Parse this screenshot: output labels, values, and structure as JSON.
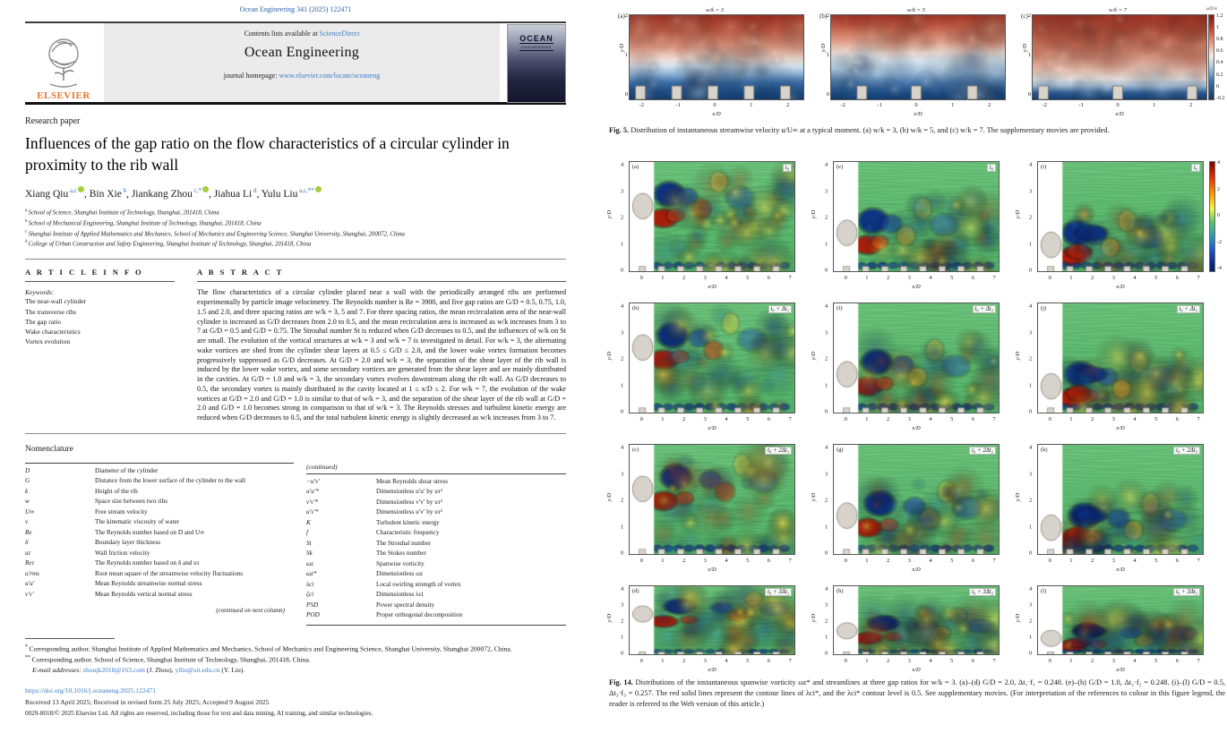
{
  "left_page": {
    "journal_ref": "Ocean Engineering 341 (2025) 122471",
    "masthead": {
      "elsevier_label": "ELSEVIER",
      "contents_prefix": "Contents lists available at ",
      "sciencedirect": "ScienceDirect",
      "journal_title": "Ocean Engineering",
      "homepage_prefix": "journal homepage: ",
      "homepage_url": "www.elsevier.com/locate/oceaneng",
      "cover_title": "OCEAN",
      "cover_subtitle": "ENGINEERING"
    },
    "article": {
      "type_label": "Research paper",
      "title": "Influences of the gap ratio on the flow characteristics of a circular cylinder in proximity to the rib wall",
      "authors": [
        {
          "name": "Xiang Qiu",
          "sup": "a,c",
          "orcid": true
        },
        {
          "name": "Bin Xie",
          "sup": "b",
          "orcid": false
        },
        {
          "name": "Jiankang Zhou",
          "sup": "c,*",
          "orcid": true
        },
        {
          "name": "Jiahua Li",
          "sup": "d",
          "orcid": false
        },
        {
          "name": "Yulu Liu",
          "sup": "a,c,**",
          "orcid": true
        }
      ],
      "affiliations": [
        {
          "sup": "a",
          "text": "School of Science, Shanghai Institute of Technology, Shanghai, 201418, China"
        },
        {
          "sup": "b",
          "text": "School of Mechanical Engineering, Shanghai Institute of Technology, Shanghai, 201418, China"
        },
        {
          "sup": "c",
          "text": "Shanghai Institute of Applied Mathematics and Mechanics, School of Mechanics and Engineering Science, Shanghai University, Shanghai, 200072, China"
        },
        {
          "sup": "d",
          "text": "College of Urban Construction and Safety Engineering, Shanghai Institute of Technology, Shanghai, 201418, China"
        }
      ]
    },
    "article_info": {
      "heading": "A R T I C L E  I N F O",
      "keywords_label": "Keywords:",
      "keywords": [
        "The near-wall cylinder",
        "The transverse ribs",
        "The gap ratio",
        "Wake characteristics",
        "Vortex evolution"
      ]
    },
    "abstract": {
      "heading": "A B S T R A C T",
      "text": "The flow characteristics of a circular cylinder placed near a wall with the periodically arranged ribs are performed experimentally by particle image velocimetry. The Reynolds number is Re = 3900, and five gap ratios are G/D = 0.5, 0.75, 1.0, 1.5 and 2.0, and three spacing ratios are w/k = 3, 5 and 7. For three spacing ratios, the mean recirculation area of the near-wall cylinder is increased as G/D decreases from 2.0 to 0.5, and the mean recirculation area is increased as w/k increases from 3 to 7 at G/D = 0.5 and G/D = 0.75. The Strouhal number St is reduced when G/D decreases to 0.5, and the influences of w/k on St are small. The evolution of the vortical structures at w/k = 3 and w/k = 7 is investigated in detail. For w/k = 3, the alternating wake vortices are shed from the cylinder shear layers at 0.5 ≤ G/D ≤ 2.0, and the lower wake vortex formation becomes progressively suppressed as G/D decreases. At G/D = 2.0 and w/k = 3, the separation of the shear layer of the rib wall is induced by the lower wake vortex, and some secondary vortices are generated from the shear layer and are mainly distributed in the cavities. At G/D = 1.0 and w/k = 3, the secondary vortex evolves downstream along the rib wall. As G/D decreases to 0.5, the secondary vortex is mainly distributed in the cavity located at 1 ≤ x/D ≤ 2. For w/k = 7, the evolution of the wake vortices at G/D = 2.0 and G/D = 1.0 is similar to that of w/k = 3, and the separation of the shear layer of the rib wall at G/D = 2.0 and G/D = 1.0 becomes strong in comparison to that of w/k = 3. The Reynolds stresses and turbulent kinetic energy are reduced when G/D decreases to 0.5, and the total turbulent kinetic energy is slightly decreased as w/k increases from 3 to 7."
    },
    "nomenclature": {
      "heading": "Nomenclature",
      "left": [
        {
          "sym": "D",
          "desc": "Diameter of the cylinder"
        },
        {
          "sym": "G",
          "desc": "Distance from the lower surface of the cylinder to the wall"
        },
        {
          "sym": "k",
          "desc": "Height of the rib"
        },
        {
          "sym": "w",
          "desc": "Space size between two ribs"
        },
        {
          "sym": "U∞",
          "desc": "Free stream velocity"
        },
        {
          "sym": "ν",
          "desc": "The kinematic viscosity of water"
        },
        {
          "sym": "Re",
          "desc": "The Reynolds number based on D and U∞"
        },
        {
          "sym": "δ",
          "desc": "Boundary layer thickness"
        },
        {
          "sym": "uτ",
          "desc": "Wall friction velocity"
        },
        {
          "sym": "Reτ",
          "desc": "The Reynolds number based on δ and uτ"
        },
        {
          "sym": "u′rms",
          "desc": "Root mean square of the streamwise velocity fluctuations"
        },
        {
          "sym": "u′u′",
          "desc": "Mean Reynolds streamwise normal stress"
        },
        {
          "sym": "v′v′",
          "desc": "Mean Reynolds vertical normal stress"
        }
      ],
      "continued_note": "(continued on next column)",
      "continued_heading": "(continued)",
      "right": [
        {
          "sym": "−u′v′",
          "desc": "Mean Reynolds shear stress"
        },
        {
          "sym": "u′u′*",
          "desc": "Dimensionless u′u′ by uτ²"
        },
        {
          "sym": "v′v′*",
          "desc": "Dimensionless v′v′ by uτ²"
        },
        {
          "sym": "u′v′*",
          "desc": "Dimensionless u′v′ by uτ²"
        },
        {
          "sym": "K",
          "desc": "Turbulent kinetic energy"
        },
        {
          "sym": "f",
          "desc": "Characteristic frequency"
        },
        {
          "sym": "St",
          "desc": "The Strouhal number"
        },
        {
          "sym": "Sk",
          "desc": "The Stokes number"
        },
        {
          "sym": "ωz",
          "desc": "Spanwise vorticity"
        },
        {
          "sym": "ωz*",
          "desc": "Dimensionless ωz"
        },
        {
          "sym": "λci",
          "desc": "Local swirling strength of vortex"
        },
        {
          "sym": "ζci",
          "desc": "Dimensionless λci"
        },
        {
          "sym": "PSD",
          "desc": "Power spectral density"
        },
        {
          "sym": "POD",
          "desc": "Proper orthogonal decomposition"
        }
      ]
    },
    "footnotes": [
      {
        "marker": "*",
        "text": "Corresponding author. Shanghai Institute of Applied Mathematics and Mechanics, School of Mechanics and Engineering Science, Shanghai University, Shanghai 200072, China."
      },
      {
        "marker": "**",
        "text": "Corresponding author. School of Science, Shanghai Institute of Technology, Shanghai, 201418, China."
      }
    ],
    "email": {
      "label": "E-mail addresses:",
      "link1": "zhoujk2018@163.com",
      "mid1": " (J. Zhou), ",
      "link2": "ylliu@sit.edu.cn",
      "mid2": " (Y. Liu)."
    },
    "doi": "https://doi.org/10.1016/j.oceaneng.2025.122471",
    "received": "Received 13 April 2025; Received in revised form 25 July 2025; Accepted 9 August 2025",
    "copyright": "0029-8018/© 2025 Elsevier Ltd. All rights are reserved, including those for text and data mining, AI training, and similar technologies."
  },
  "fig5": {
    "panels": [
      {
        "letter": "(a)",
        "title": "w/k = 3",
        "ribs": [
          -2.05,
          -1.05,
          -0.05,
          0.95,
          1.95
        ],
        "variant": 0
      },
      {
        "letter": "(b)",
        "title": "w/k = 5",
        "ribs": [
          -1.5,
          0,
          1.55
        ],
        "variant": 1
      },
      {
        "letter": "(c)",
        "title": "w/k = 7",
        "ribs": [
          -2.05,
          0,
          2.05
        ],
        "variant": 2
      }
    ],
    "x_ticks": [
      "-2",
      "-1",
      "0",
      "1",
      "2"
    ],
    "y_ticks": [
      "2",
      "1",
      "0"
    ],
    "xlabel": "x/D",
    "ylabel": "y/D",
    "colorbar": {
      "label": "u/U∞",
      "ticks": [
        "1.2",
        "1",
        "0.8",
        "0.6",
        "0.4",
        "0.2",
        "0",
        "-0.2"
      ]
    },
    "caption_bold": "Fig. 5.",
    "caption_text": " Distribution of instantaneous streamwise velocity u/U∞ at a typical moment. (a) w/k = 3, (b) w/k = 5, and (c) w/k = 7. The supplementary movies are provided."
  },
  "fig14": {
    "panel_letters": [
      [
        "(a)",
        "(e)",
        "(i)"
      ],
      [
        "(b)",
        "(f)",
        "(j)"
      ],
      [
        "(c)",
        "(g)",
        "(k)"
      ],
      [
        "(d)",
        "(h)",
        "(l)"
      ]
    ],
    "time_labels": [
      [
        "t₀",
        "t₀",
        "t₀"
      ],
      [
        "t₀ + Δt₁",
        "t₀ + Δt₂",
        "t₀ + Δt₃"
      ],
      [
        "t₀ + 2Δt₁",
        "t₀ + 2Δt₂",
        "t₀ + 2Δt₃"
      ],
      [
        "t₀ + 3Δt₁",
        "t₀ + 3Δt₂",
        "t₀ + 3Δt₃"
      ]
    ],
    "cylinder_y": [
      2.5,
      1.5,
      1.05
    ],
    "x_ticks": [
      "0",
      "1",
      "2",
      "3",
      "4",
      "5",
      "6",
      "7"
    ],
    "y_ticks": [
      "4",
      "3",
      "2",
      "1",
      "0"
    ],
    "xlabel": "x/D",
    "ylabel": "y/D",
    "colorbar_ticks": [
      "4",
      "2",
      "0",
      "-2",
      "-4"
    ],
    "caption_bold": "Fig. 14.",
    "caption_text": " Distributions of the instantaneous spanwise vorticity ωz* and streamlines at three gap ratios for w/k = 3. (a)–(d) G/D = 2.0, Δt₁·f₁ = 0.248. (e)–(h) G/D = 1.0, Δt₂·f₂ = 0.248. (i)–(l) G/D = 0.5, Δt₃·f₃ = 0.257. The red solid lines represent the contour lines of λci*, and the λci* contour level is 0.5. See supplementary movies. (For interpretation of the references to colour in this figure legend, the reader is referred to the Web version of this article.)"
  }
}
